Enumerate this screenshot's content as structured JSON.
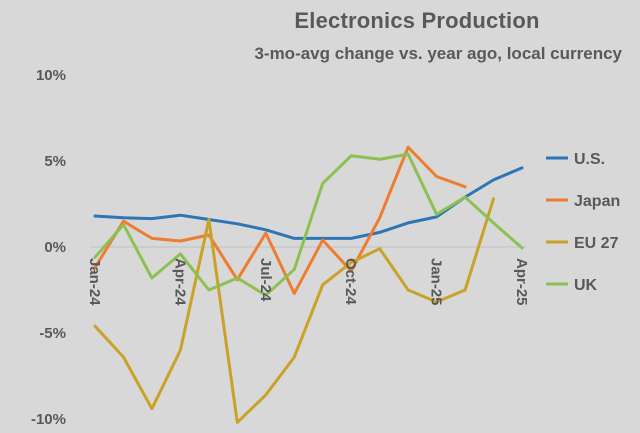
{
  "chart_data": {
    "type": "line",
    "title": "Electronics Production",
    "subtitle": "3-mo-avg change vs. year ago, local currency",
    "xlabel": "",
    "ylabel": "",
    "ylim": [
      -10,
      10
    ],
    "yticks": [
      10,
      5,
      0,
      -5,
      -10
    ],
    "ytick_labels": [
      "10%",
      "5%",
      "0%",
      "-5%",
      "-10%"
    ],
    "x": [
      "Jan-24",
      "Feb-24",
      "Mar-24",
      "Apr-24",
      "May-24",
      "Jun-24",
      "Jul-24",
      "Aug-24",
      "Sep-24",
      "Oct-24",
      "Nov-24",
      "Dec-24",
      "Jan-25",
      "Feb-25",
      "Mar-25",
      "Apr-25"
    ],
    "xtick_labels": [
      {
        "index": 0,
        "label": "Jan-24"
      },
      {
        "index": 3,
        "label": "Apr-24"
      },
      {
        "index": 6,
        "label": "Jul-24"
      },
      {
        "index": 9,
        "label": "Oct-24"
      },
      {
        "index": 12,
        "label": "Jan-25"
      },
      {
        "index": 15,
        "label": "Apr-25"
      }
    ],
    "grid": false,
    "legend_position": "right",
    "series": [
      {
        "name": "U.S.",
        "color": "#2e75b6",
        "values": [
          1.8,
          1.7,
          1.65,
          1.85,
          1.6,
          1.35,
          1.0,
          0.5,
          0.5,
          0.5,
          0.85,
          1.4,
          1.75,
          2.9,
          3.9,
          4.6
        ]
      },
      {
        "name": "Japan",
        "color": "#ed7d31",
        "values": [
          -1.2,
          1.5,
          0.5,
          0.35,
          0.7,
          -1.9,
          0.8,
          -2.7,
          0.4,
          -1.4,
          1.7,
          5.8,
          4.1,
          3.5,
          null,
          null
        ]
      },
      {
        "name": "EU 27",
        "color": "#c9a227",
        "values": [
          -4.6,
          -6.4,
          -9.4,
          -6.0,
          1.6,
          -10.2,
          -8.6,
          -6.4,
          -2.2,
          -0.9,
          -0.1,
          -2.5,
          -3.2,
          -2.5,
          2.8,
          null
        ]
      },
      {
        "name": "UK",
        "color": "#8cc152",
        "values": [
          -0.6,
          1.3,
          -1.8,
          -0.4,
          -2.5,
          -1.8,
          -2.8,
          -1.3,
          3.7,
          5.3,
          5.1,
          5.4,
          1.9,
          2.9,
          1.4,
          -0.05
        ]
      }
    ]
  }
}
